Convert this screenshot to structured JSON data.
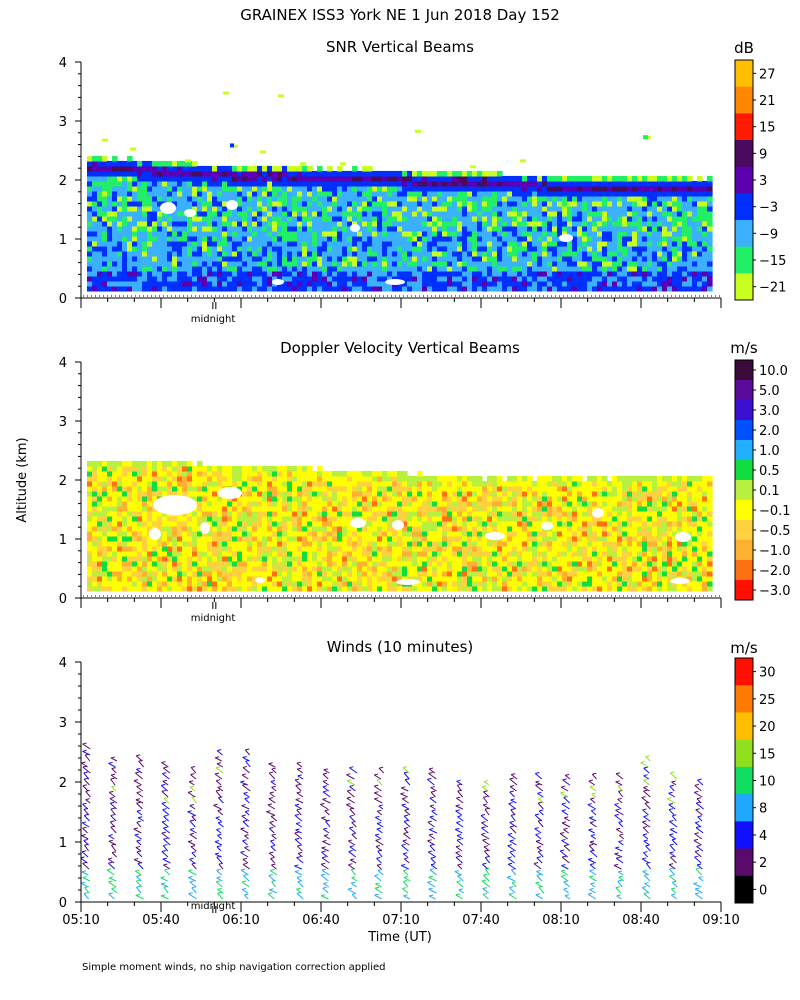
{
  "figure_title": "GRAINEX ISS3 York NE    1 Jun 2018 Day 152",
  "ylabel": "Altitude (km)",
  "xlabel": "Time (UT)",
  "footnote": "Simple moment winds, no ship navigation correction applied",
  "midnight_label": "midnight",
  "chart_data": [
    {
      "type": "heatmap",
      "title": "SNR Vertical Beams",
      "unit": "dB",
      "ylim": [
        0,
        4
      ],
      "yticks": [
        "0",
        "1",
        "2",
        "3",
        "4"
      ],
      "time_range_utc": [
        "05:10",
        "09:10"
      ],
      "echo_top_km": [
        2.35,
        2.3,
        2.25,
        2.2,
        2.2,
        2.15,
        2.15,
        2.1,
        2.1,
        2.05,
        2.0,
        2.0,
        2.0,
        2.0
      ],
      "colorbar": {
        "labels": [
          "27",
          "21",
          "15",
          "9",
          "3",
          "−3",
          "−9",
          "−15",
          "−21"
        ],
        "colors": [
          "#ffbf00",
          "#ff8800",
          "#ff1a00",
          "#4a0a5e",
          "#5a00b0",
          "#0030ff",
          "#3ab0ff",
          "#22ee66",
          "#c8ff20"
        ]
      }
    },
    {
      "type": "heatmap",
      "title": "Doppler Velocity Vertical Beams",
      "unit": "m/s",
      "ylim": [
        0,
        4
      ],
      "yticks": [
        "0",
        "1",
        "2",
        "3",
        "4"
      ],
      "time_range_utc": [
        "05:10",
        "09:10"
      ],
      "echo_top_km": [
        2.3,
        2.3,
        2.25,
        2.2,
        2.2,
        2.15,
        2.1,
        2.05,
        2.0,
        2.0,
        2.0,
        2.0,
        2.0,
        2.0
      ],
      "colorbar": {
        "labels": [
          "10.0",
          "5.0",
          "3.0",
          "2.0",
          "1.0",
          "0.5",
          "0.1",
          "−0.1",
          "−0.5",
          "−1.0",
          "−2.0",
          "−3.0"
        ],
        "colors": [
          "#3a0a3a",
          "#5a0a9a",
          "#3a10d0",
          "#0050ff",
          "#20b0ff",
          "#10dd40",
          "#b8f040",
          "#ffff00",
          "#ffd040",
          "#ffb030",
          "#ff7010",
          "#ff1000"
        ]
      }
    },
    {
      "type": "scatter",
      "title": "Winds (10 minutes)",
      "unit": "m/s",
      "ylim": [
        0,
        4
      ],
      "yticks": [
        "0",
        "1",
        "2",
        "3",
        "4"
      ],
      "xticks": [
        "05:10",
        "05:40",
        "06:10",
        "06:40",
        "07:10",
        "07:40",
        "08:10",
        "08:40",
        "09:10"
      ],
      "profile_times_utc": [
        "05:10",
        "05:20",
        "05:30",
        "05:40",
        "05:50",
        "06:00",
        "06:10",
        "06:20",
        "06:30",
        "06:40",
        "06:50",
        "07:00",
        "07:10",
        "07:20",
        "07:30",
        "07:40",
        "07:50",
        "08:00",
        "08:10",
        "08:20",
        "08:30",
        "08:40",
        "08:50",
        "09:00"
      ],
      "profile_top_km": [
        2.6,
        2.4,
        2.4,
        2.3,
        2.2,
        2.5,
        2.5,
        2.3,
        2.3,
        2.2,
        2.2,
        2.2,
        2.2,
        2.2,
        2.0,
        2.0,
        2.1,
        2.1,
        2.1,
        2.1,
        2.1,
        2.4,
        2.1,
        2.0
      ],
      "colorbar": {
        "labels": [
          "30",
          "25",
          "20",
          "15",
          "10",
          "8",
          "4",
          "2",
          "0"
        ],
        "colors": [
          "#ff1000",
          "#ff7a00",
          "#ffbf00",
          "#90e020",
          "#10dd60",
          "#20a8ff",
          "#1010ff",
          "#5a0a6a",
          "#000000"
        ]
      }
    }
  ]
}
